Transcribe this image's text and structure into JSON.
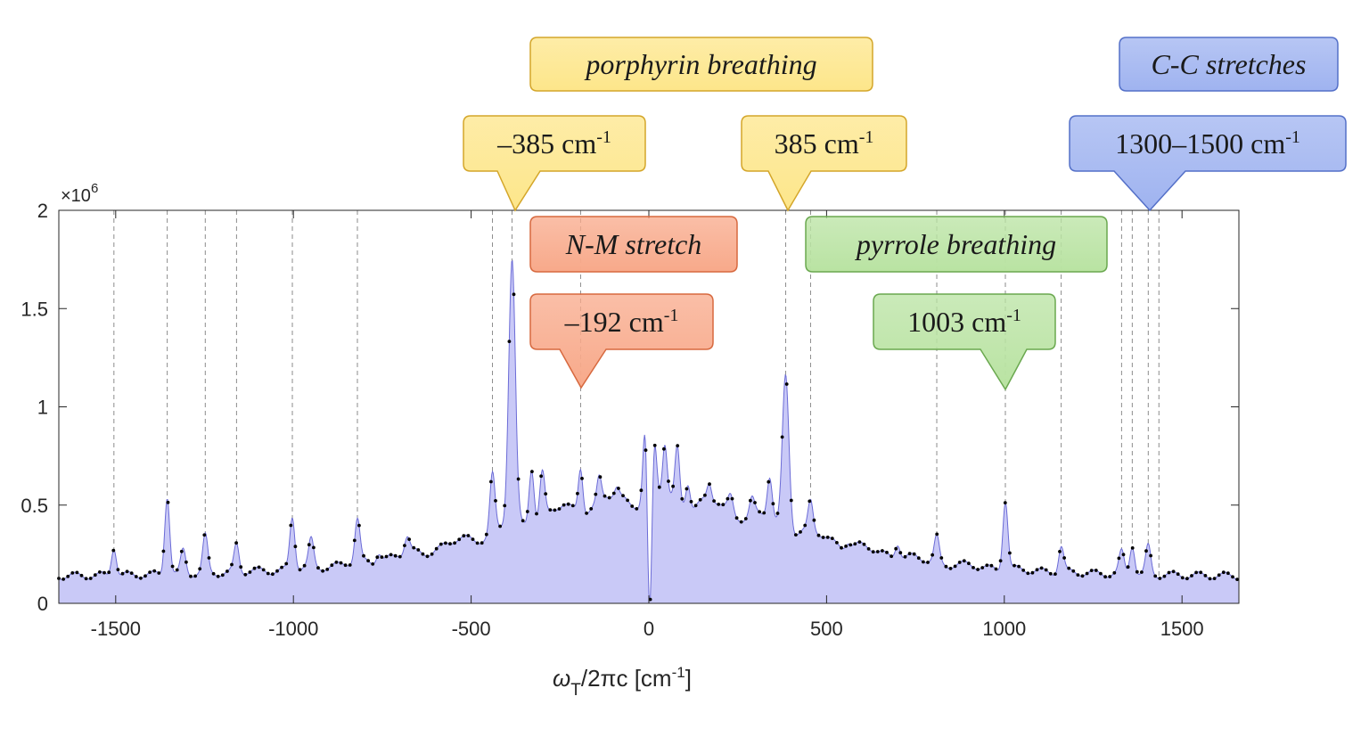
{
  "chart_data": {
    "type": "area",
    "x_label": {
      "symbol": "ω",
      "subscript": "T",
      "rest": "/2πc  [cm",
      "unit_sup": "-1",
      "close": "]"
    },
    "y_multiplier": {
      "base": "×10",
      "sup": "6"
    },
    "xlim": [
      -1660,
      1660
    ],
    "ylim": [
      0,
      2
    ],
    "x_ticks": [
      -1500,
      -1000,
      -500,
      0,
      500,
      1000,
      1500
    ],
    "x_tick_labels": [
      "-1500",
      "-1000",
      "-500",
      "0",
      "500",
      "1000",
      "1500"
    ],
    "y_ticks": [
      0,
      0.5,
      1,
      1.5,
      2
    ],
    "y_tick_labels": [
      "0",
      "0.5",
      "1",
      "1.5",
      "2"
    ],
    "fill_color": "#c9c9f7",
    "line_color": "#6b6bd6",
    "marker_color": "#000000",
    "reference_lines": [
      -1505,
      -1355,
      -1248,
      -1160,
      -1003,
      -820,
      -440,
      -385,
      -192,
      385,
      455,
      810,
      1003,
      1160,
      1330,
      1360,
      1405,
      1435
    ],
    "spectrum_peaks": [
      {
        "x": -1505,
        "y": 0.29
      },
      {
        "x": -1355,
        "y": 0.55
      },
      {
        "x": -1310,
        "y": 0.27
      },
      {
        "x": -1248,
        "y": 0.34
      },
      {
        "x": -1160,
        "y": 0.3
      },
      {
        "x": -1003,
        "y": 0.44
      },
      {
        "x": -950,
        "y": 0.32
      },
      {
        "x": -820,
        "y": 0.42
      },
      {
        "x": -760,
        "y": 0.27
      },
      {
        "x": -680,
        "y": 0.33
      },
      {
        "x": -440,
        "y": 0.66
      },
      {
        "x": -385,
        "y": 1.73
      },
      {
        "x": -330,
        "y": 0.72
      },
      {
        "x": -300,
        "y": 0.68
      },
      {
        "x": -240,
        "y": 0.48
      },
      {
        "x": -192,
        "y": 0.72
      },
      {
        "x": -140,
        "y": 0.63
      },
      {
        "x": -90,
        "y": 0.57
      },
      {
        "x": -10,
        "y": 0.95
      },
      {
        "x": 15,
        "y": 0.83
      },
      {
        "x": 45,
        "y": 0.79
      },
      {
        "x": 80,
        "y": 0.8
      },
      {
        "x": 110,
        "y": 0.65
      },
      {
        "x": 170,
        "y": 0.58
      },
      {
        "x": 230,
        "y": 0.56
      },
      {
        "x": 290,
        "y": 0.53
      },
      {
        "x": 340,
        "y": 0.63
      },
      {
        "x": 385,
        "y": 1.18
      },
      {
        "x": 455,
        "y": 0.5
      },
      {
        "x": 560,
        "y": 0.33
      },
      {
        "x": 700,
        "y": 0.32
      },
      {
        "x": 810,
        "y": 0.34
      },
      {
        "x": 1003,
        "y": 0.53
      },
      {
        "x": 1160,
        "y": 0.29
      },
      {
        "x": 1330,
        "y": 0.26
      },
      {
        "x": 1360,
        "y": 0.3
      },
      {
        "x": 1405,
        "y": 0.29
      }
    ],
    "dip": {
      "x": 2,
      "y": 0.06
    }
  },
  "callouts": [
    {
      "id": "porphyrin-label",
      "text": "porphyrin breathing",
      "italic": true,
      "color": "#fde68a",
      "border": "#d4a62a"
    },
    {
      "id": "porphyrin-neg",
      "main": "–385 cm",
      "sup": "-1",
      "color": "#fde68a",
      "border": "#d4a62a"
    },
    {
      "id": "porphyrin-pos",
      "main": "385 cm",
      "sup": "-1",
      "color": "#fde68a",
      "border": "#d4a62a"
    },
    {
      "id": "cc-label",
      "text": "C-C stretches",
      "italic": true,
      "color": "#9fb3f0",
      "border": "#5470c8"
    },
    {
      "id": "cc-value",
      "main": "1300–1500 cm",
      "sup": "-1",
      "color": "#9fb3f0",
      "border": "#5470c8"
    },
    {
      "id": "nm-label",
      "text": "N-M stretch",
      "italic": true,
      "color": "#f8a98a",
      "border": "#d7693f"
    },
    {
      "id": "nm-value",
      "main": "–192 cm",
      "sup": "-1",
      "color": "#f8a98a",
      "border": "#d7693f"
    },
    {
      "id": "pyrrole-label",
      "text": "pyrrole breathing",
      "italic": true,
      "color": "#b9e3a2",
      "border": "#6aa84f"
    },
    {
      "id": "pyrrole-value",
      "main": "1003 cm",
      "sup": "-1",
      "color": "#b9e3a2",
      "border": "#6aa84f"
    }
  ]
}
